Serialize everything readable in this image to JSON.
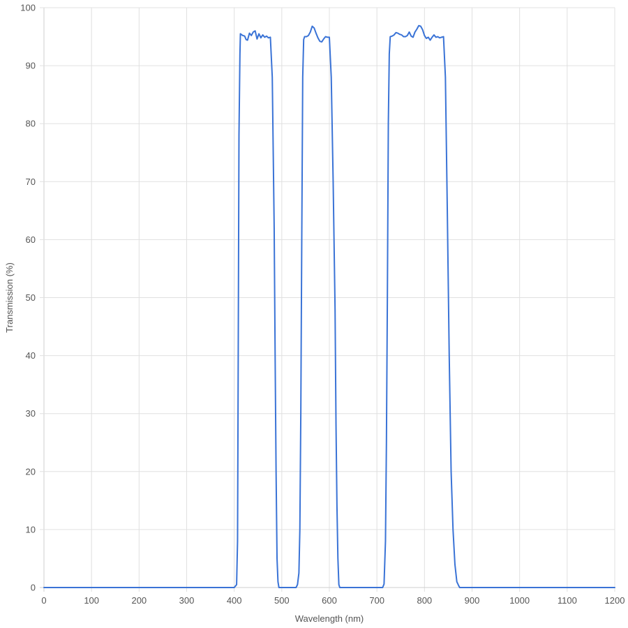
{
  "chart_data": {
    "type": "line",
    "title": "",
    "xlabel": "Wavelength (nm)",
    "ylabel": "Transmission (%)",
    "xlim": [
      0,
      1200
    ],
    "ylim": [
      0,
      100
    ],
    "x_ticks": [
      "0",
      "100",
      "200",
      "300",
      "400",
      "500",
      "600",
      "700",
      "800",
      "900",
      "1000",
      "1100",
      "1200"
    ],
    "y_ticks": [
      "0",
      "10",
      "20",
      "30",
      "40",
      "50",
      "60",
      "70",
      "80",
      "90",
      "100"
    ],
    "grid": true,
    "legend": "none",
    "line_color": "#3a73d6",
    "series": [
      {
        "x": [
          0,
          400,
          405,
          407,
          408,
          410,
          412,
          413,
          418,
          422,
          425,
          428,
          432,
          436,
          440,
          444,
          448,
          452,
          456,
          460,
          464,
          468,
          472,
          476,
          480,
          484,
          486,
          488,
          490,
          492,
          494,
          496,
          498,
          500,
          530,
          533,
          536,
          538,
          540,
          542,
          544,
          546,
          548,
          552,
          556,
          560,
          564,
          568,
          572,
          576,
          580,
          584,
          588,
          592,
          596,
          600,
          604,
          608,
          612,
          614,
          616,
          618,
          620,
          622,
          624,
          626,
          712,
          715,
          718,
          720,
          722,
          724,
          726,
          728,
          732,
          736,
          740,
          744,
          748,
          752,
          756,
          760,
          764,
          768,
          772,
          776,
          780,
          784,
          788,
          792,
          796,
          800,
          804,
          808,
          812,
          816,
          820,
          824,
          828,
          832,
          836,
          840,
          844,
          848,
          852,
          856,
          860,
          864,
          868,
          872,
          874,
          876,
          878,
          880,
          882,
          884,
          886,
          888,
          890,
          1200
        ],
        "y": [
          0,
          0,
          0.5,
          8,
          30,
          78,
          92,
          95.5,
          95.2,
          95.1,
          94.5,
          94.4,
          95.6,
          95.2,
          95.8,
          96.0,
          94.6,
          95.5,
          94.8,
          95.3,
          94.9,
          95.1,
          94.8,
          94.9,
          88,
          62,
          40,
          20,
          5,
          1,
          0,
          0,
          0,
          0,
          0,
          0.5,
          2.5,
          10,
          30,
          60,
          88,
          94.5,
          95.0,
          95.0,
          95.2,
          95.8,
          96.8,
          96.5,
          95.6,
          94.8,
          94.2,
          94.1,
          94.6,
          95.0,
          94.9,
          94.9,
          88,
          70,
          48,
          28,
          14,
          5,
          0.5,
          0,
          0,
          0,
          0,
          0.6,
          8,
          25,
          50,
          80,
          92,
          95.0,
          95.1,
          95.3,
          95.7,
          95.6,
          95.4,
          95.3,
          95.0,
          95.0,
          95.2,
          95.8,
          95.1,
          94.9,
          95.8,
          96.3,
          96.9,
          96.8,
          96.2,
          95.2,
          94.7,
          94.9,
          94.4,
          94.9,
          95.3,
          94.9,
          95.0,
          94.8,
          94.9,
          95.0,
          88,
          65,
          40,
          20,
          10,
          4,
          1,
          0.3,
          0,
          0,
          0,
          0,
          0,
          0,
          0,
          0,
          0,
          0
        ],
        "note_of_shape": ""
      }
    ]
  }
}
